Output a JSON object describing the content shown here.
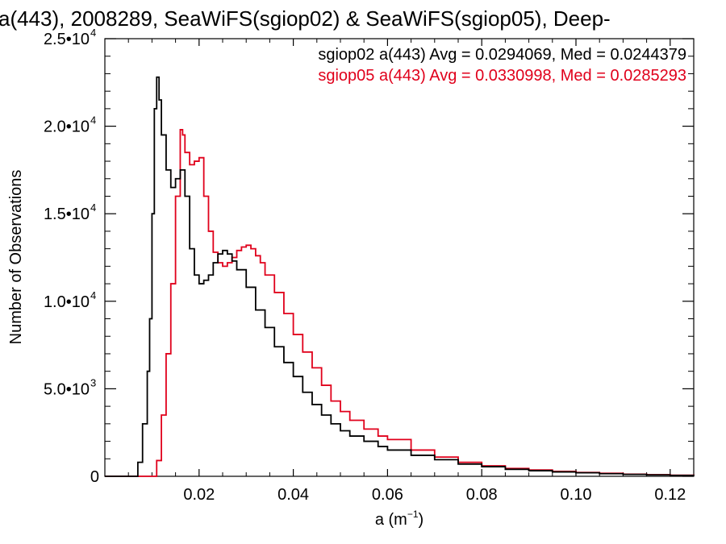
{
  "chart_data": {
    "type": "line",
    "title": "a(443), 2008289, SeaWiFS(sgiop02) & SeaWiFS(sgiop05), Deep-",
    "xlabel": "a (m",
    "xlabel_sup": "−1",
    "xlabel_end": ")",
    "ylabel": "Number of Observations",
    "xlim": [
      0.0,
      0.125
    ],
    "ylim": [
      0,
      25000
    ],
    "x_ticks": [
      0.02,
      0.04,
      0.06,
      0.08,
      0.1,
      0.12
    ],
    "x_tick_labels": [
      "0.02",
      "0.04",
      "0.06",
      "0.08",
      "0.10",
      "0.12"
    ],
    "y_ticks": [
      0,
      5000,
      10000,
      15000,
      20000,
      25000
    ],
    "y_tick_labels": [
      {
        "mant": "0",
        "exp": ""
      },
      {
        "mant": "5.0•10",
        "exp": "3"
      },
      {
        "mant": "1.0•10",
        "exp": "4"
      },
      {
        "mant": "1.5•10",
        "exp": "4"
      },
      {
        "mant": "2.0•10",
        "exp": "4"
      },
      {
        "mant": "2.5•10",
        "exp": "4"
      }
    ],
    "grid": false,
    "legend_position": "top-right",
    "series": [
      {
        "name": "sgiop02 a(443) Avg = 0.0294069, Med = 0.0244379",
        "color": "#000000",
        "points": [
          [
            0.0,
            0
          ],
          [
            0.006,
            0
          ],
          [
            0.007,
            800
          ],
          [
            0.008,
            3000
          ],
          [
            0.009,
            6000
          ],
          [
            0.0095,
            9000
          ],
          [
            0.01,
            15000
          ],
          [
            0.0105,
            21000
          ],
          [
            0.011,
            22800
          ],
          [
            0.0115,
            21500
          ],
          [
            0.012,
            19500
          ],
          [
            0.013,
            17500
          ],
          [
            0.014,
            16500
          ],
          [
            0.015,
            17000
          ],
          [
            0.016,
            17500
          ],
          [
            0.017,
            16000
          ],
          [
            0.018,
            13000
          ],
          [
            0.019,
            11500
          ],
          [
            0.02,
            11000
          ],
          [
            0.021,
            11200
          ],
          [
            0.022,
            11500
          ],
          [
            0.023,
            12200
          ],
          [
            0.024,
            12700
          ],
          [
            0.025,
            12900
          ],
          [
            0.026,
            12700
          ],
          [
            0.027,
            12300
          ],
          [
            0.028,
            11800
          ],
          [
            0.03,
            10800
          ],
          [
            0.032,
            9500
          ],
          [
            0.034,
            8500
          ],
          [
            0.036,
            7400
          ],
          [
            0.038,
            6500
          ],
          [
            0.04,
            5700
          ],
          [
            0.042,
            4800
          ],
          [
            0.044,
            4100
          ],
          [
            0.046,
            3500
          ],
          [
            0.048,
            3000
          ],
          [
            0.05,
            2600
          ],
          [
            0.052,
            2300
          ],
          [
            0.055,
            2000
          ],
          [
            0.058,
            1700
          ],
          [
            0.06,
            1500
          ],
          [
            0.065,
            1200
          ],
          [
            0.07,
            950
          ],
          [
            0.075,
            700
          ],
          [
            0.08,
            550
          ],
          [
            0.085,
            400
          ],
          [
            0.09,
            320
          ],
          [
            0.095,
            250
          ],
          [
            0.1,
            200
          ],
          [
            0.105,
            150
          ],
          [
            0.11,
            110
          ],
          [
            0.115,
            80
          ],
          [
            0.12,
            50
          ],
          [
            0.125,
            30
          ]
        ]
      },
      {
        "name": "sgiop05 a(443) Avg = 0.0330998, Med = 0.0285293",
        "color": "#e0001b",
        "points": [
          [
            0.0,
            0
          ],
          [
            0.01,
            0
          ],
          [
            0.011,
            900
          ],
          [
            0.012,
            3500
          ],
          [
            0.013,
            7000
          ],
          [
            0.014,
            11000
          ],
          [
            0.015,
            16000
          ],
          [
            0.016,
            19800
          ],
          [
            0.0165,
            19500
          ],
          [
            0.017,
            18500
          ],
          [
            0.018,
            17800
          ],
          [
            0.019,
            18000
          ],
          [
            0.02,
            18200
          ],
          [
            0.021,
            16000
          ],
          [
            0.022,
            14000
          ],
          [
            0.023,
            12800
          ],
          [
            0.024,
            12200
          ],
          [
            0.025,
            12000
          ],
          [
            0.026,
            12200
          ],
          [
            0.027,
            12500
          ],
          [
            0.028,
            12900
          ],
          [
            0.029,
            13100
          ],
          [
            0.03,
            13200
          ],
          [
            0.031,
            13000
          ],
          [
            0.032,
            12600
          ],
          [
            0.033,
            12200
          ],
          [
            0.034,
            11500
          ],
          [
            0.036,
            10500
          ],
          [
            0.038,
            9300
          ],
          [
            0.04,
            8100
          ],
          [
            0.042,
            7100
          ],
          [
            0.044,
            6200
          ],
          [
            0.046,
            5200
          ],
          [
            0.048,
            4300
          ],
          [
            0.05,
            3700
          ],
          [
            0.052,
            3200
          ],
          [
            0.055,
            2700
          ],
          [
            0.058,
            2300
          ],
          [
            0.06,
            2100
          ],
          [
            0.065,
            1500
          ],
          [
            0.07,
            1100
          ],
          [
            0.075,
            800
          ],
          [
            0.08,
            600
          ],
          [
            0.085,
            450
          ],
          [
            0.09,
            360
          ],
          [
            0.095,
            280
          ],
          [
            0.1,
            220
          ],
          [
            0.105,
            170
          ],
          [
            0.11,
            120
          ],
          [
            0.115,
            90
          ],
          [
            0.12,
            60
          ],
          [
            0.125,
            40
          ]
        ]
      }
    ]
  }
}
